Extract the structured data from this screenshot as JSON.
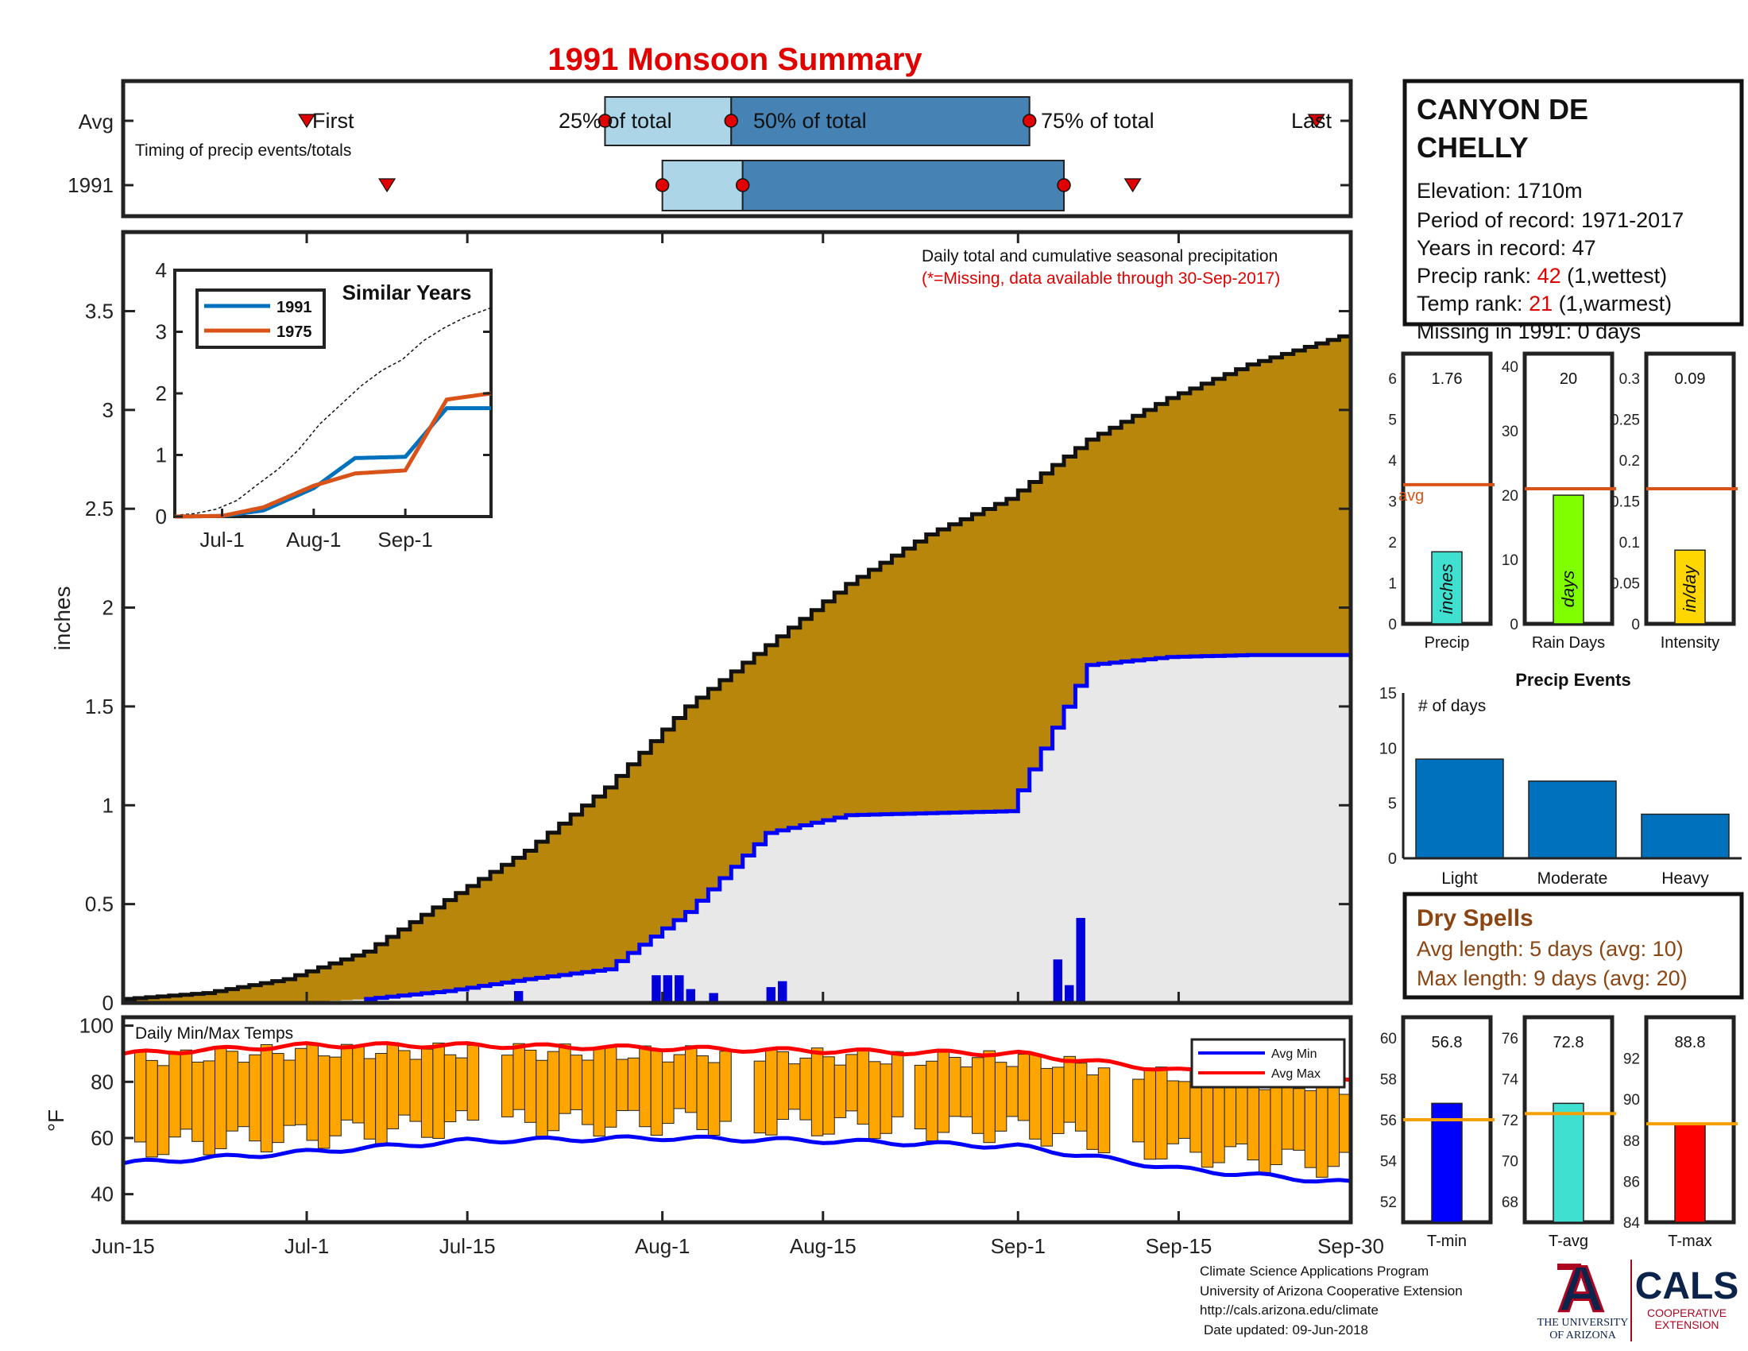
{
  "title": "1991 Monsoon Summary",
  "timing": {
    "row_labels": [
      "Avg",
      "1991"
    ],
    "subtitle": "Timing of precip events/totals",
    "first_label": "First",
    "last_label": "Last",
    "pct25_label": "25% of total",
    "pct50_label": "50% of total",
    "pct75_label": "75% of total",
    "avg": {
      "first": "Jul-1",
      "p25": "Jul-27",
      "p50": "Aug-7",
      "p75": "Sep-2",
      "last": "Sep-27"
    },
    "year": {
      "first": "Jul-8",
      "p25": "Aug-1",
      "p50": "Aug-8",
      "p75": "Sep-5",
      "last": "Sep-11"
    },
    "light_color": "#acd6e8",
    "dark_color": "#4682b4"
  },
  "station": {
    "name_line1": "CANYON DE",
    "name_line2": "CHELLY",
    "elevation": "Elevation: 1710m",
    "period": "Period of record: 1971-2017",
    "years": "Years in record: 47",
    "precip_rank_label": "Precip rank:",
    "precip_rank_value": "42",
    "precip_rank_note": "(1,wettest)",
    "temp_rank_label": "Temp rank:",
    "temp_rank_value": "21",
    "temp_rank_note": "(1,warmest)",
    "missing": "Missing in 1991: 0 days"
  },
  "main": {
    "note1": "Daily total and cumulative seasonal precipitation",
    "note2": "(*=Missing, data available through 30-Sep-2017)",
    "ylabel": "inches",
    "yticks": [
      "0",
      "0.5",
      "1",
      "1.5",
      "2",
      "2.5",
      "3",
      "3.5"
    ],
    "xticks": [
      "Jun-15",
      "Jul-1",
      "Jul-15",
      "Aug-1",
      "Aug-15",
      "Sep-1",
      "Sep-15",
      "Sep-30"
    ],
    "colors": {
      "avg_fill": "#b8860b",
      "year_fill": "#e8e8e8",
      "year_line": "#0000ff",
      "daily_bar": "#0000dd"
    }
  },
  "inset": {
    "title": "Similar Years",
    "legend": [
      {
        "name": "1991",
        "color": "#0072bd"
      },
      {
        "name": "1975",
        "color": "#d95319"
      }
    ],
    "yticks": [
      "0",
      "1",
      "2",
      "3",
      "4"
    ],
    "xticks": [
      "Jul-1",
      "Aug-1",
      "Sep-1"
    ]
  },
  "temps": {
    "title": "Daily Min/Max Temps",
    "ylabel": "°F",
    "yticks": [
      "40",
      "60",
      "80",
      "100"
    ],
    "legend": [
      {
        "name": "Avg Min",
        "color": "#0000ff"
      },
      {
        "name": "Avg Max",
        "color": "#ff0000"
      }
    ],
    "bar_color": "#ffa500"
  },
  "mini_bars": [
    {
      "label": "Precip",
      "value": "1.76",
      "unit": "inches",
      "avg_label": "avg",
      "yticks": [
        "0",
        "1",
        "2",
        "3",
        "4",
        "5",
        "6"
      ],
      "color": "#40e0d0"
    },
    {
      "label": "Rain Days",
      "value": "20",
      "unit": "days",
      "yticks": [
        "0",
        "10",
        "20",
        "30",
        "40"
      ],
      "color": "#7fff00"
    },
    {
      "label": "Intensity",
      "value": "0.09",
      "unit": "in/day",
      "yticks": [
        "0",
        "0.05",
        "0.1",
        "0.15",
        "0.2",
        "0.25",
        "0.3"
      ],
      "color": "#ffd700"
    }
  ],
  "events": {
    "title": "Precip Events",
    "ylabel": "# of days",
    "yticks": [
      "0",
      "5",
      "10",
      "15"
    ],
    "color": "#0072bd"
  },
  "dry_spells": {
    "title": "Dry Spells",
    "avg_length": "Avg length: 5 days (avg: 10)",
    "max_length": "Max length: 9 days (avg: 20)",
    "color": "#8b4513"
  },
  "temp_bars": [
    {
      "label": "T-min",
      "value": "56.8",
      "yticks": [
        "52",
        "54",
        "56",
        "58",
        "60"
      ],
      "color": "#0000ff"
    },
    {
      "label": "T-avg",
      "value": "72.8",
      "yticks": [
        "68",
        "70",
        "72",
        "74",
        "76"
      ],
      "color": "#40e0d0"
    },
    {
      "label": "T-max",
      "value": "88.8",
      "yticks": [
        "84",
        "86",
        "88",
        "90",
        "92"
      ],
      "color": "#ff0000"
    }
  ],
  "footer": {
    "line1": "Climate Science Applications Program",
    "line2": "University of Arizona Cooperative Extension",
    "line3": "http://cals.arizona.edu/climate",
    "line4": "Date updated: 09-Jun-2018"
  },
  "logos": {
    "ua_letter": "A",
    "ua_line1": "THE UNIVERSITY",
    "ua_line2": "OF ARIZONA",
    "cals": "CALS",
    "cals_line1": "COOPERATIVE",
    "cals_line2": "EXTENSION"
  },
  "chart_data": [
    {
      "type": "area",
      "x": [
        "Jun-15",
        "Jun-22",
        "Jun-29",
        "Jul-6",
        "Jul-13",
        "Jul-20",
        "Jul-27",
        "Aug-3",
        "Aug-10",
        "Aug-17",
        "Aug-24",
        "Aug-31",
        "Sep-7",
        "Sep-14",
        "Sep-21",
        "Sep-30"
      ],
      "series": [
        {
          "name": "Avg cumulative",
          "values": [
            0.02,
            0.05,
            0.12,
            0.26,
            0.52,
            0.77,
            1.09,
            1.5,
            1.81,
            2.12,
            2.37,
            2.55,
            2.85,
            3.06,
            3.23,
            3.39
          ]
        },
        {
          "name": "1991 cumulative",
          "values": [
            0,
            0,
            0,
            0.02,
            0.06,
            0.12,
            0.17,
            0.46,
            0.86,
            0.95,
            0.96,
            0.97,
            1.71,
            1.75,
            1.76,
            1.76
          ]
        }
      ],
      "ylabel": "inches",
      "ylim": [
        0,
        3.9
      ]
    },
    {
      "type": "bar",
      "name": "Daily precip 1991 (in)",
      "x": [
        "Jul-19",
        "Jul-31",
        "Aug-1",
        "Aug-2",
        "Aug-3",
        "Aug-5",
        "Aug-10",
        "Aug-11",
        "Sep-4",
        "Sep-5",
        "Sep-6"
      ],
      "values": [
        0.06,
        0.14,
        0.14,
        0.14,
        0.07,
        0.05,
        0.08,
        0.11,
        0.22,
        0.09,
        0.43
      ]
    },
    {
      "type": "line",
      "title": "Similar Years",
      "x": [
        "Jun-15",
        "Jul-1",
        "Jul-15",
        "Aug-1",
        "Aug-15",
        "Sep-1",
        "Sep-15",
        "Sep-30"
      ],
      "series": [
        {
          "name": "1991",
          "values": [
            0,
            0.01,
            0.1,
            0.46,
            0.95,
            0.97,
            1.76,
            1.76
          ]
        },
        {
          "name": "1975",
          "values": [
            0,
            0.01,
            0.15,
            0.5,
            0.7,
            0.75,
            1.9,
            2.0
          ]
        }
      ],
      "ylim": [
        0,
        4
      ]
    },
    {
      "type": "bar",
      "title": "Daily Min/Max Temps",
      "x": [
        "Jun-15",
        "Jul-1",
        "Jul-15",
        "Aug-1",
        "Aug-15",
        "Sep-1",
        "Sep-15",
        "Sep-30"
      ],
      "series": [
        {
          "name": "Avg Max",
          "values": [
            90,
            93,
            93,
            92,
            91,
            90,
            84,
            80
          ]
        },
        {
          "name": "Avg Min",
          "values": [
            51,
            55,
            59,
            60,
            59,
            57,
            49,
            44
          ]
        }
      ],
      "ylim": [
        30,
        103
      ]
    },
    {
      "type": "bar",
      "categories": [
        "Precip",
        "Rain Days",
        "Intensity"
      ],
      "values": [
        1.76,
        20,
        0.09
      ],
      "averages": [
        3.4,
        21,
        0.165
      ]
    },
    {
      "type": "bar",
      "title": "Precip Events",
      "categories": [
        "Light",
        "Moderate",
        "Heavy"
      ],
      "values": [
        9,
        7,
        4
      ],
      "ylim": [
        0,
        15
      ]
    },
    {
      "type": "bar",
      "categories": [
        "T-min",
        "T-avg",
        "T-max"
      ],
      "values": [
        56.8,
        72.8,
        88.8
      ],
      "averages": [
        56,
        72.3,
        88.8
      ]
    }
  ]
}
